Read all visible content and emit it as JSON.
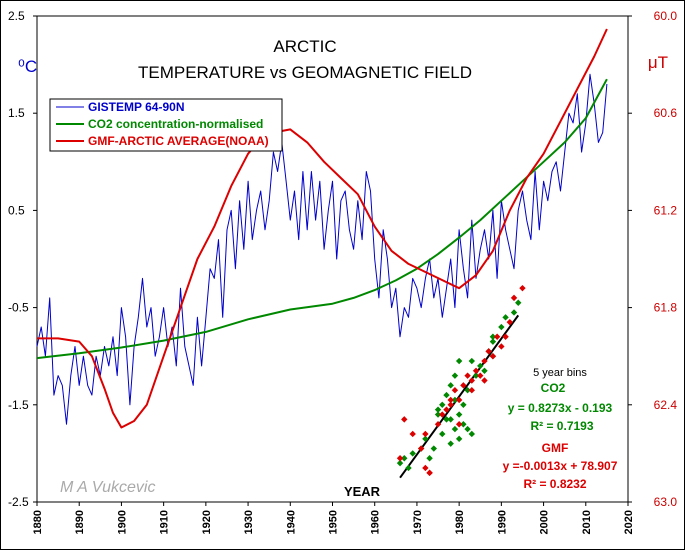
{
  "chart_data": {
    "type": "line",
    "title": [
      "ARCTIC",
      "TEMPERATURE vs GEOMAGNETIC FIELD"
    ],
    "xlabel": "YEAR",
    "left_unit": "⁰C",
    "right_unit": "μT",
    "xlim": [
      1880,
      2020
    ],
    "ylim_left": [
      -2.5,
      2.5
    ],
    "ylim_right": [
      60.0,
      63.0
    ],
    "right_axis_reversed": true,
    "x_ticks": [
      "1880",
      "1890",
      "1900",
      "1910",
      "1920",
      "1930",
      "1940",
      "1950",
      "1960",
      "1970",
      "1980",
      "1990",
      "2000",
      "2010",
      "2020"
    ],
    "left_ticks": [
      "2.5",
      "1.5",
      "0.5",
      "-0.5",
      "-1.5",
      "-2.5"
    ],
    "right_ticks": [
      "60.0",
      "60.6",
      "61.2",
      "61.8",
      "62.4",
      "63.0"
    ],
    "grid": false,
    "legend_position": "top-left",
    "signature": "M A Vukcevic",
    "colors": {
      "gistemp": "#0000cc",
      "co2": "#008800",
      "gmf": "#dd0000",
      "axis_right": "#cc0000"
    },
    "series": [
      {
        "name": "GISTEMP 64-90N",
        "axis": "left",
        "x": [
          1880,
          1881,
          1882,
          1883,
          1884,
          1885,
          1886,
          1887,
          1888,
          1889,
          1890,
          1891,
          1892,
          1893,
          1894,
          1895,
          1896,
          1897,
          1898,
          1899,
          1900,
          1901,
          1902,
          1903,
          1904,
          1905,
          1906,
          1907,
          1908,
          1909,
          1910,
          1911,
          1912,
          1913,
          1914,
          1915,
          1916,
          1917,
          1918,
          1919,
          1920,
          1921,
          1922,
          1923,
          1924,
          1925,
          1926,
          1927,
          1928,
          1929,
          1930,
          1931,
          1932,
          1933,
          1934,
          1935,
          1936,
          1937,
          1938,
          1939,
          1940,
          1941,
          1942,
          1943,
          1944,
          1945,
          1946,
          1947,
          1948,
          1949,
          1950,
          1951,
          1952,
          1953,
          1954,
          1955,
          1956,
          1957,
          1958,
          1959,
          1960,
          1961,
          1962,
          1963,
          1964,
          1965,
          1966,
          1967,
          1968,
          1969,
          1970,
          1971,
          1972,
          1973,
          1974,
          1975,
          1976,
          1977,
          1978,
          1979,
          1980,
          1981,
          1982,
          1983,
          1984,
          1985,
          1986,
          1987,
          1988,
          1989,
          1990,
          1991,
          1992,
          1993,
          1994,
          1995,
          1996,
          1997,
          1998,
          1999,
          2000,
          2001,
          2002,
          2003,
          2004,
          2005,
          2006,
          2007,
          2008,
          2009,
          2010,
          2011,
          2012,
          2013,
          2014,
          2015
        ],
        "values": [
          -0.9,
          -0.7,
          -1.0,
          -0.4,
          -1.4,
          -1.2,
          -1.3,
          -1.7,
          -1.2,
          -0.9,
          -1.3,
          -1.0,
          -1.3,
          -1.4,
          -1.0,
          -1.2,
          -0.9,
          -1.1,
          -0.8,
          -1.2,
          -0.5,
          -0.8,
          -1.5,
          -0.9,
          -0.6,
          -0.2,
          -0.7,
          -0.5,
          -1.0,
          -0.8,
          -0.5,
          -0.9,
          -0.7,
          -1.1,
          -0.3,
          -0.9,
          -1.1,
          -1.3,
          -0.6,
          -1.1,
          -0.6,
          -0.1,
          -0.2,
          0.2,
          -0.6,
          0.3,
          0.5,
          -0.1,
          0.6,
          0.1,
          0.8,
          0.2,
          0.5,
          0.7,
          0.3,
          0.6,
          1.1,
          0.9,
          1.2,
          0.8,
          0.4,
          0.7,
          0.2,
          0.9,
          0.3,
          0.9,
          0.4,
          0.8,
          0.1,
          0.5,
          0.8,
          0.0,
          0.6,
          0.7,
          0.3,
          0.1,
          0.6,
          0.2,
          0.9,
          0.7,
          0.0,
          -0.4,
          0.3,
          0.0,
          -0.5,
          -0.3,
          -0.8,
          -0.5,
          -0.6,
          -0.2,
          -0.3,
          -0.5,
          -0.2,
          0.0,
          -0.4,
          -0.2,
          -0.6,
          -0.3,
          0.0,
          -0.5,
          0.3,
          -0.1,
          -0.4,
          0.4,
          -0.2,
          0.1,
          0.3,
          0.0,
          0.5,
          -0.2,
          0.6,
          0.3,
          0.1,
          -0.1,
          0.5,
          0.7,
          0.4,
          0.2,
          0.9,
          0.3,
          0.8,
          0.6,
          0.9,
          1.0,
          0.7,
          1.1,
          1.5,
          1.4,
          1.7,
          1.1,
          1.4,
          1.9,
          1.6,
          1.2,
          1.3,
          1.8
        ]
      },
      {
        "name": "CO2 concentration-normalised",
        "axis": "left",
        "x": [
          1880,
          1890,
          1900,
          1910,
          1920,
          1930,
          1940,
          1950,
          1955,
          1960,
          1965,
          1970,
          1975,
          1980,
          1985,
          1990,
          1995,
          2000,
          2005,
          2010,
          2015
        ],
        "values": [
          -1.02,
          -0.97,
          -0.91,
          -0.84,
          -0.75,
          -0.62,
          -0.52,
          -0.46,
          -0.4,
          -0.32,
          -0.22,
          -0.1,
          0.05,
          0.22,
          0.4,
          0.6,
          0.8,
          1.0,
          1.2,
          1.45,
          1.85
        ]
      },
      {
        "name": "GMF-ARCTIC AVERAGE(NOAA)",
        "axis": "right",
        "x": [
          1880,
          1885,
          1890,
          1893,
          1896,
          1898,
          1900,
          1903,
          1906,
          1910,
          1914,
          1918,
          1922,
          1926,
          1930,
          1934,
          1938,
          1940,
          1944,
          1948,
          1952,
          1956,
          1960,
          1964,
          1968,
          1972,
          1976,
          1980,
          1984,
          1988,
          1992,
          1996,
          2000,
          2004,
          2008,
          2012,
          2015
        ],
        "values": [
          61.99,
          61.99,
          62.01,
          62.1,
          62.3,
          62.45,
          62.54,
          62.5,
          62.4,
          62.1,
          61.8,
          61.5,
          61.3,
          61.05,
          60.85,
          60.73,
          60.71,
          60.7,
          60.78,
          60.9,
          61.0,
          61.1,
          61.3,
          61.45,
          61.53,
          61.58,
          61.63,
          61.68,
          61.6,
          61.45,
          61.2,
          61.0,
          60.85,
          60.65,
          60.45,
          60.25,
          60.08
        ]
      }
    ],
    "inset": {
      "title": "5 year bins",
      "co2_label": "CO2",
      "co2_eq": "y = 0.8273x - 0.193",
      "co2_r2": "R² = 0.7193",
      "gmf_label": "GMF",
      "gmf_eq": "y =-0.0013x + 78.907",
      "gmf_r2": "R² = 0.8232",
      "trend_line": {
        "x": [
          1966,
          1994
        ],
        "y": [
          -2.25,
          -0.58
        ]
      },
      "co2_points": {
        "x": [
          1966,
          1967,
          1968,
          1969,
          1971,
          1972,
          1973,
          1975,
          1976,
          1977,
          1978,
          1979,
          1980,
          1981,
          1982,
          1983,
          1976,
          1978,
          1979,
          1980,
          1981,
          1977,
          1975,
          1979,
          1982,
          1984,
          1983,
          1985,
          1987,
          1988,
          1988,
          1990,
          1993,
          1994,
          1980,
          1978,
          1986,
          1988,
          1991,
          1974
        ],
        "y": [
          -2.1,
          -2.05,
          -2.15,
          -2.0,
          -1.95,
          -1.85,
          -2.05,
          -1.6,
          -1.5,
          -1.4,
          -1.3,
          -1.2,
          -1.05,
          -1.7,
          -1.75,
          -1.8,
          -1.8,
          -1.9,
          -1.75,
          -1.6,
          -1.5,
          -1.65,
          -1.55,
          -1.45,
          -1.35,
          -1.2,
          -1.05,
          -1.1,
          -0.95,
          -0.85,
          -0.8,
          -0.7,
          -0.55,
          -0.45,
          -1.85,
          -1.65,
          -1.15,
          -1.0,
          -0.6,
          -1.95
        ]
      },
      "gmf_points": {
        "x": [
          1966,
          1967,
          1969,
          1971,
          1972,
          1973,
          1975,
          1977,
          1978,
          1979,
          1980,
          1981,
          1982,
          1983,
          1984,
          1985,
          1986,
          1987,
          1988,
          1989,
          1991,
          1992,
          1993,
          1995,
          1972,
          1973,
          1976,
          1980,
          1983,
          1986,
          1990,
          1978
        ],
        "y": [
          -2.05,
          -1.65,
          -1.8,
          -1.95,
          -2.15,
          -2.2,
          -1.7,
          -1.55,
          -1.45,
          -1.35,
          -1.45,
          -1.3,
          -1.2,
          -1.25,
          -1.15,
          -1.2,
          -1.05,
          -0.95,
          -1.0,
          -0.8,
          -0.8,
          -0.65,
          -0.4,
          -0.3,
          -1.8,
          -2.2,
          -1.6,
          -1.7,
          -1.35,
          -1.25,
          -0.9,
          -1.5
        ]
      }
    }
  }
}
